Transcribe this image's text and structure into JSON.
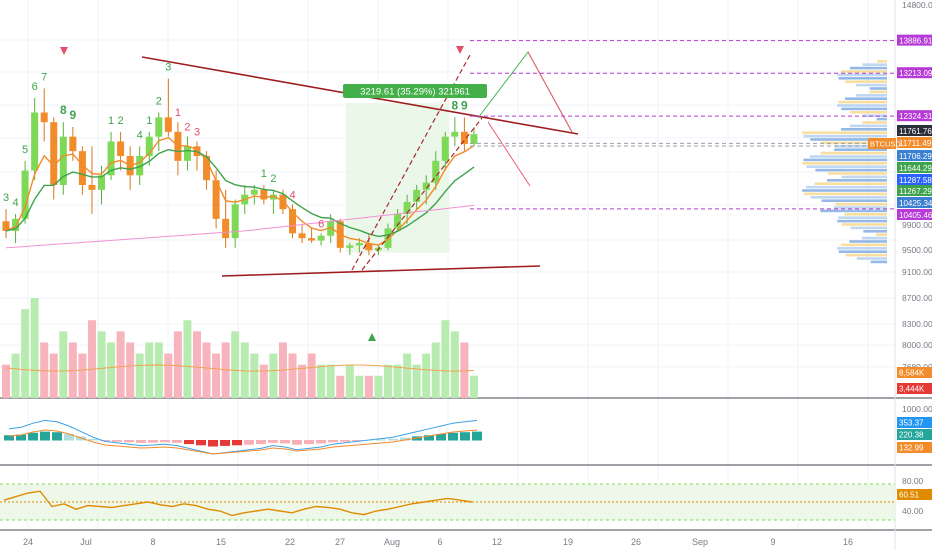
{
  "title": "",
  "colors": {
    "up": "#7ed957",
    "down": "#f28b2a",
    "ema_fast": "#f28b2a",
    "ema_slow": "#3fa34d",
    "ma_long": "#f490d4",
    "trend": "#9e1e1e",
    "channel": "#a82a2a",
    "proj_up": "#3fb54d",
    "proj_down": "#ef5a6f",
    "level_line": "#b63ad6",
    "td_up": "#3fa34d",
    "td_down": "#e0506a",
    "vol_up": "#b8ebb0",
    "vol_down": "#f7b4bc",
    "macd_line": "#3aa0e6",
    "signal_line": "#f28b2a",
    "rsi": "#e08a00"
  },
  "chart_data": {
    "type": "candlestick",
    "symbol": "BTCUSD",
    "y_ticks": [
      "14800.00",
      "9900.00",
      "9500.00",
      "9100.00",
      "8700.00",
      "8300.00",
      "8000.00",
      "7680.00"
    ],
    "x_ticks": [
      "24",
      "Jul",
      "8",
      "15",
      "22",
      "27",
      "Aug",
      "6",
      "12",
      "19",
      "26",
      "Sep",
      "9",
      "16"
    ],
    "measure_label": "3219.61 (35.29%) 321961",
    "ohlc": [
      [
        10150,
        10400,
        9800,
        9950
      ],
      [
        9950,
        10300,
        9700,
        10200
      ],
      [
        10200,
        11400,
        10100,
        11200
      ],
      [
        11200,
        12700,
        11000,
        12400
      ],
      [
        12400,
        12900,
        11800,
        12200
      ],
      [
        12200,
        12300,
        10600,
        10900
      ],
      [
        10900,
        12200,
        10700,
        11900
      ],
      [
        11900,
        12100,
        11400,
        11600
      ],
      [
        11600,
        11700,
        10700,
        10900
      ],
      [
        10900,
        11700,
        10300,
        10800
      ],
      [
        10800,
        11300,
        10500,
        11100
      ],
      [
        11100,
        12000,
        11000,
        11800
      ],
      [
        11800,
        12000,
        11200,
        11500
      ],
      [
        11500,
        11700,
        10800,
        11100
      ],
      [
        11100,
        11700,
        10900,
        11500
      ],
      [
        11500,
        12000,
        11300,
        11900
      ],
      [
        11900,
        12400,
        11600,
        12300
      ],
      [
        12300,
        13100,
        11900,
        12000
      ],
      [
        12000,
        12200,
        11100,
        11400
      ],
      [
        11400,
        11900,
        11200,
        11700
      ],
      [
        11700,
        11800,
        11200,
        11500
      ],
      [
        11500,
        11600,
        10800,
        11000
      ],
      [
        11000,
        11200,
        10000,
        10200
      ],
      [
        10200,
        10800,
        9600,
        9800
      ],
      [
        9800,
        10600,
        9600,
        10500
      ],
      [
        10500,
        10900,
        10300,
        10700
      ],
      [
        10700,
        10900,
        10500,
        10800
      ],
      [
        10800,
        10900,
        10500,
        10600
      ],
      [
        10600,
        10800,
        10300,
        10700
      ],
      [
        10700,
        10800,
        10300,
        10400
      ],
      [
        10400,
        10500,
        9800,
        9900
      ],
      [
        9900,
        10100,
        9700,
        9800
      ],
      [
        9800,
        10000,
        9700,
        9750
      ],
      [
        9750,
        9900,
        9650,
        9850
      ],
      [
        9850,
        10300,
        9700,
        10150
      ],
      [
        10150,
        10200,
        9500,
        9600
      ],
      [
        9600,
        9700,
        9450,
        9650
      ],
      [
        9650,
        9800,
        9500,
        9700
      ],
      [
        9700,
        9900,
        9450,
        9550
      ],
      [
        9550,
        9650,
        9450,
        9600
      ],
      [
        9600,
        10100,
        9550,
        10000
      ],
      [
        10000,
        10400,
        9950,
        10300
      ],
      [
        10300,
        10700,
        10100,
        10550
      ],
      [
        10550,
        10900,
        10400,
        10800
      ],
      [
        10800,
        11100,
        10500,
        10950
      ],
      [
        10950,
        11600,
        10800,
        11400
      ],
      [
        11400,
        12000,
        11200,
        11900
      ],
      [
        11900,
        12300,
        11700,
        12000
      ],
      [
        12000,
        12300,
        11600,
        11750
      ],
      [
        11750,
        12100,
        11700,
        11950
      ]
    ],
    "td_counts": [
      {
        "i": 0,
        "label": "3",
        "dir": "up"
      },
      {
        "i": 1,
        "label": "4",
        "dir": "up"
      },
      {
        "i": 2,
        "label": "5",
        "dir": "up"
      },
      {
        "i": 3,
        "label": "6",
        "dir": "up"
      },
      {
        "i": 4,
        "label": "7",
        "dir": "up"
      },
      {
        "i": 6,
        "label": "8",
        "dir": "up"
      },
      {
        "i": 7,
        "label": "9",
        "dir": "up"
      },
      {
        "i": 11,
        "label": "1",
        "dir": "up"
      },
      {
        "i": 12,
        "label": "2",
        "dir": "up"
      },
      {
        "i": 14,
        "label": "4",
        "dir": "up"
      },
      {
        "i": 15,
        "label": "1",
        "dir": "up"
      },
      {
        "i": 16,
        "label": "2",
        "dir": "up"
      },
      {
        "i": 17,
        "label": "3",
        "dir": "up"
      },
      {
        "i": 18,
        "label": "1",
        "dir": "down"
      },
      {
        "i": 19,
        "label": "2",
        "dir": "down"
      },
      {
        "i": 20,
        "label": "3",
        "dir": "down"
      },
      {
        "i": 27,
        "label": "1",
        "dir": "up"
      },
      {
        "i": 28,
        "label": "2",
        "dir": "up"
      },
      {
        "i": 30,
        "label": "4",
        "dir": "down"
      },
      {
        "i": 33,
        "label": "6",
        "dir": "down"
      },
      {
        "i": 47,
        "label": "8",
        "dir": "up"
      },
      {
        "i": 48,
        "label": "9",
        "dir": "up"
      }
    ],
    "price_labels": [
      {
        "text": "13886.91",
        "y": 13887,
        "kind": "level"
      },
      {
        "text": "13213.09",
        "y": 13213,
        "kind": "level"
      },
      {
        "text": "12324.31",
        "y": 12324,
        "kind": "level"
      },
      {
        "text": "11761.76",
        "y": 11762,
        "kind": "ema"
      },
      {
        "text": "11711.49",
        "y": 11711,
        "kind": "price"
      },
      {
        "text": "11706.29",
        "y": 11706,
        "kind": "ema2"
      },
      {
        "text": "11644.29",
        "y": 11644,
        "kind": "ma"
      },
      {
        "text": "11287.58",
        "y": 11288,
        "kind": "ema2"
      },
      {
        "text": "11267.29",
        "y": 11267,
        "kind": "ma"
      },
      {
        "text": "10425.34",
        "y": 10425,
        "kind": "ema2"
      },
      {
        "text": "10405.46",
        "y": 10405,
        "kind": "level"
      }
    ],
    "volume": {
      "ticks": [
        "8,584K",
        "3,444K"
      ],
      "values": [
        3,
        4,
        8,
        9,
        5,
        4,
        6,
        5,
        4,
        7,
        6,
        5,
        6,
        5,
        4,
        5,
        5,
        4,
        6,
        7,
        6,
        5,
        4,
        5,
        6,
        5,
        4,
        3,
        4,
        5,
        4,
        3,
        4,
        3,
        3,
        2,
        3,
        2,
        2,
        2,
        3,
        3,
        4,
        3,
        4,
        5,
        7,
        6,
        5,
        2
      ]
    },
    "macd": {
      "ticks": [
        "1000.00",
        "353.37",
        "220.38",
        "132.99"
      ],
      "hist": [
        40,
        45,
        60,
        70,
        65,
        50,
        30,
        10,
        -5,
        -10,
        -15,
        -20,
        -18,
        -15,
        -20,
        -30,
        -40,
        -50,
        -45,
        -40,
        -35,
        -30,
        -20,
        -25,
        -35,
        -30,
        -25,
        -15,
        -10,
        -5,
        0,
        5,
        10,
        20,
        30,
        40,
        50,
        60,
        65,
        70
      ]
    },
    "rsi": {
      "ticks": [
        "80.00",
        "60.51",
        "40.00"
      ],
      "values": [
        62,
        66,
        70,
        72,
        55,
        58,
        52,
        56,
        55,
        54,
        56,
        58,
        60,
        57,
        55,
        58,
        56,
        52,
        50,
        45,
        48,
        50,
        52,
        50,
        48,
        52,
        55,
        54,
        52,
        48,
        46,
        50,
        52,
        55,
        58,
        60,
        62,
        64,
        62,
        60
      ]
    }
  }
}
